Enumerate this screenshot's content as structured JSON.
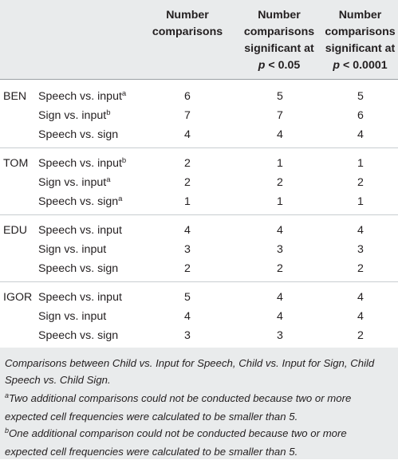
{
  "header": {
    "col1": [
      "Number",
      "comparisons"
    ],
    "col2": [
      "Number",
      "comparisons",
      "significant at"
    ],
    "col2_p": "p",
    "col2_thr": " < 0.05",
    "col3": [
      "Number",
      "comparisons",
      "significant at"
    ],
    "col3_p": "p",
    "col3_thr": " < 0.0001"
  },
  "groups": [
    {
      "child": "BEN",
      "rows": [
        {
          "comparison": "Speech vs. input",
          "sup": "a",
          "n": "6",
          "sig05": "5",
          "sig0001": "5"
        },
        {
          "comparison": "Sign vs. input",
          "sup": "b",
          "n": "7",
          "sig05": "7",
          "sig0001": "6"
        },
        {
          "comparison": "Speech vs. sign",
          "sup": "",
          "n": "4",
          "sig05": "4",
          "sig0001": "4"
        }
      ]
    },
    {
      "child": "TOM",
      "rows": [
        {
          "comparison": "Speech vs. input",
          "sup": "b",
          "n": "2",
          "sig05": "1",
          "sig0001": "1"
        },
        {
          "comparison": "Sign vs. input",
          "sup": "a",
          "n": "2",
          "sig05": "2",
          "sig0001": "2"
        },
        {
          "comparison": "Speech vs. sign",
          "sup": "a",
          "n": "1",
          "sig05": "1",
          "sig0001": "1"
        }
      ]
    },
    {
      "child": "EDU",
      "rows": [
        {
          "comparison": "Speech vs. input",
          "sup": "",
          "n": "4",
          "sig05": "4",
          "sig0001": "4"
        },
        {
          "comparison": "Sign vs. input",
          "sup": "",
          "n": "3",
          "sig05": "3",
          "sig0001": "3"
        },
        {
          "comparison": "Speech vs. sign",
          "sup": "",
          "n": "2",
          "sig05": "2",
          "sig0001": "2"
        }
      ]
    },
    {
      "child": "IGOR",
      "rows": [
        {
          "comparison": "Speech vs. input",
          "sup": "",
          "n": "5",
          "sig05": "4",
          "sig0001": "4"
        },
        {
          "comparison": "Sign vs. input",
          "sup": "",
          "n": "4",
          "sig05": "4",
          "sig0001": "4"
        },
        {
          "comparison": "Speech vs. sign",
          "sup": "",
          "n": "3",
          "sig05": "3",
          "sig0001": "2"
        }
      ]
    }
  ],
  "footnotes": {
    "main": [
      "Comparisons between Child vs. Input for Speech, Child vs. Input for Sign, Child",
      "Speech vs. Child Sign."
    ],
    "a_mark": "a",
    "a_text": [
      "Two additional comparisons could not be conducted because two or more",
      "expected cell frequencies were calculated to be smaller than 5."
    ],
    "b_mark": "b",
    "b_text": [
      "One additional comparison could not be conducted because two or more",
      "expected cell frequencies were calculated to be smaller than 5."
    ]
  }
}
